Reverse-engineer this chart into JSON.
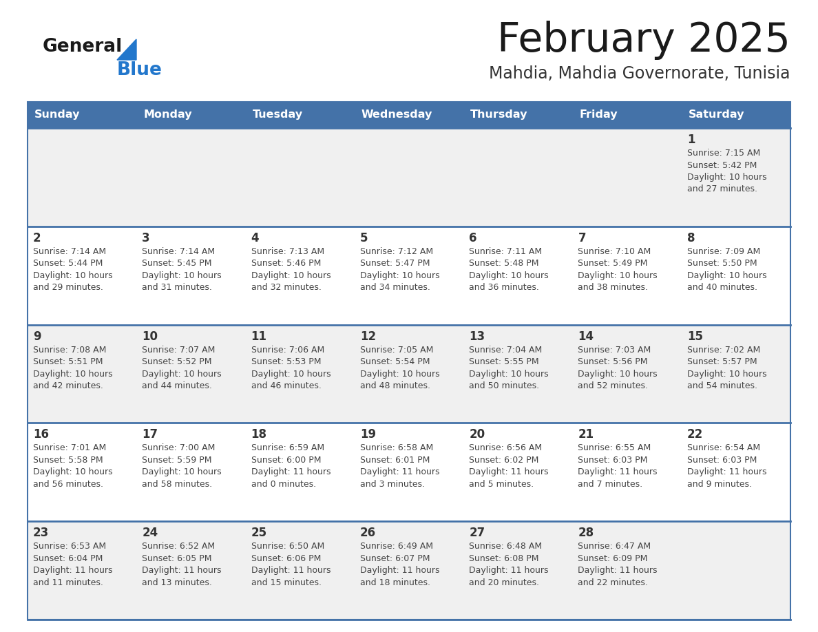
{
  "title": "February 2025",
  "subtitle": "Mahdia, Mahdia Governorate, Tunisia",
  "days_of_week": [
    "Sunday",
    "Monday",
    "Tuesday",
    "Wednesday",
    "Thursday",
    "Friday",
    "Saturday"
  ],
  "header_bg": "#4472a8",
  "header_text": "#ffffff",
  "row_bg_odd": "#f0f0f0",
  "row_bg_even": "#ffffff",
  "separator_color": "#4472a8",
  "day_number_color": "#333333",
  "info_text_color": "#444444",
  "title_color": "#1a1a1a",
  "subtitle_color": "#333333",
  "logo_general_color": "#1a1a1a",
  "logo_blue_color": "#2277cc",
  "logo_triangle_color": "#2277cc",
  "calendar_data": [
    [
      {
        "day": "",
        "sunrise": "",
        "sunset": "",
        "daylight": ""
      },
      {
        "day": "",
        "sunrise": "",
        "sunset": "",
        "daylight": ""
      },
      {
        "day": "",
        "sunrise": "",
        "sunset": "",
        "daylight": ""
      },
      {
        "day": "",
        "sunrise": "",
        "sunset": "",
        "daylight": ""
      },
      {
        "day": "",
        "sunrise": "",
        "sunset": "",
        "daylight": ""
      },
      {
        "day": "",
        "sunrise": "",
        "sunset": "",
        "daylight": ""
      },
      {
        "day": "1",
        "sunrise": "7:15 AM",
        "sunset": "5:42 PM",
        "daylight": "10 hours and 27 minutes"
      }
    ],
    [
      {
        "day": "2",
        "sunrise": "7:14 AM",
        "sunset": "5:44 PM",
        "daylight": "10 hours and 29 minutes"
      },
      {
        "day": "3",
        "sunrise": "7:14 AM",
        "sunset": "5:45 PM",
        "daylight": "10 hours and 31 minutes"
      },
      {
        "day": "4",
        "sunrise": "7:13 AM",
        "sunset": "5:46 PM",
        "daylight": "10 hours and 32 minutes"
      },
      {
        "day": "5",
        "sunrise": "7:12 AM",
        "sunset": "5:47 PM",
        "daylight": "10 hours and 34 minutes"
      },
      {
        "day": "6",
        "sunrise": "7:11 AM",
        "sunset": "5:48 PM",
        "daylight": "10 hours and 36 minutes"
      },
      {
        "day": "7",
        "sunrise": "7:10 AM",
        "sunset": "5:49 PM",
        "daylight": "10 hours and 38 minutes"
      },
      {
        "day": "8",
        "sunrise": "7:09 AM",
        "sunset": "5:50 PM",
        "daylight": "10 hours and 40 minutes"
      }
    ],
    [
      {
        "day": "9",
        "sunrise": "7:08 AM",
        "sunset": "5:51 PM",
        "daylight": "10 hours and 42 minutes"
      },
      {
        "day": "10",
        "sunrise": "7:07 AM",
        "sunset": "5:52 PM",
        "daylight": "10 hours and 44 minutes"
      },
      {
        "day": "11",
        "sunrise": "7:06 AM",
        "sunset": "5:53 PM",
        "daylight": "10 hours and 46 minutes"
      },
      {
        "day": "12",
        "sunrise": "7:05 AM",
        "sunset": "5:54 PM",
        "daylight": "10 hours and 48 minutes"
      },
      {
        "day": "13",
        "sunrise": "7:04 AM",
        "sunset": "5:55 PM",
        "daylight": "10 hours and 50 minutes"
      },
      {
        "day": "14",
        "sunrise": "7:03 AM",
        "sunset": "5:56 PM",
        "daylight": "10 hours and 52 minutes"
      },
      {
        "day": "15",
        "sunrise": "7:02 AM",
        "sunset": "5:57 PM",
        "daylight": "10 hours and 54 minutes"
      }
    ],
    [
      {
        "day": "16",
        "sunrise": "7:01 AM",
        "sunset": "5:58 PM",
        "daylight": "10 hours and 56 minutes"
      },
      {
        "day": "17",
        "sunrise": "7:00 AM",
        "sunset": "5:59 PM",
        "daylight": "10 hours and 58 minutes"
      },
      {
        "day": "18",
        "sunrise": "6:59 AM",
        "sunset": "6:00 PM",
        "daylight": "11 hours and 0 minutes"
      },
      {
        "day": "19",
        "sunrise": "6:58 AM",
        "sunset": "6:01 PM",
        "daylight": "11 hours and 3 minutes"
      },
      {
        "day": "20",
        "sunrise": "6:56 AM",
        "sunset": "6:02 PM",
        "daylight": "11 hours and 5 minutes"
      },
      {
        "day": "21",
        "sunrise": "6:55 AM",
        "sunset": "6:03 PM",
        "daylight": "11 hours and 7 minutes"
      },
      {
        "day": "22",
        "sunrise": "6:54 AM",
        "sunset": "6:03 PM",
        "daylight": "11 hours and 9 minutes"
      }
    ],
    [
      {
        "day": "23",
        "sunrise": "6:53 AM",
        "sunset": "6:04 PM",
        "daylight": "11 hours and 11 minutes"
      },
      {
        "day": "24",
        "sunrise": "6:52 AM",
        "sunset": "6:05 PM",
        "daylight": "11 hours and 13 minutes"
      },
      {
        "day": "25",
        "sunrise": "6:50 AM",
        "sunset": "6:06 PM",
        "daylight": "11 hours and 15 minutes"
      },
      {
        "day": "26",
        "sunrise": "6:49 AM",
        "sunset": "6:07 PM",
        "daylight": "11 hours and 18 minutes"
      },
      {
        "day": "27",
        "sunrise": "6:48 AM",
        "sunset": "6:08 PM",
        "daylight": "11 hours and 20 minutes"
      },
      {
        "day": "28",
        "sunrise": "6:47 AM",
        "sunset": "6:09 PM",
        "daylight": "11 hours and 22 minutes"
      },
      {
        "day": "",
        "sunrise": "",
        "sunset": "",
        "daylight": ""
      }
    ]
  ]
}
